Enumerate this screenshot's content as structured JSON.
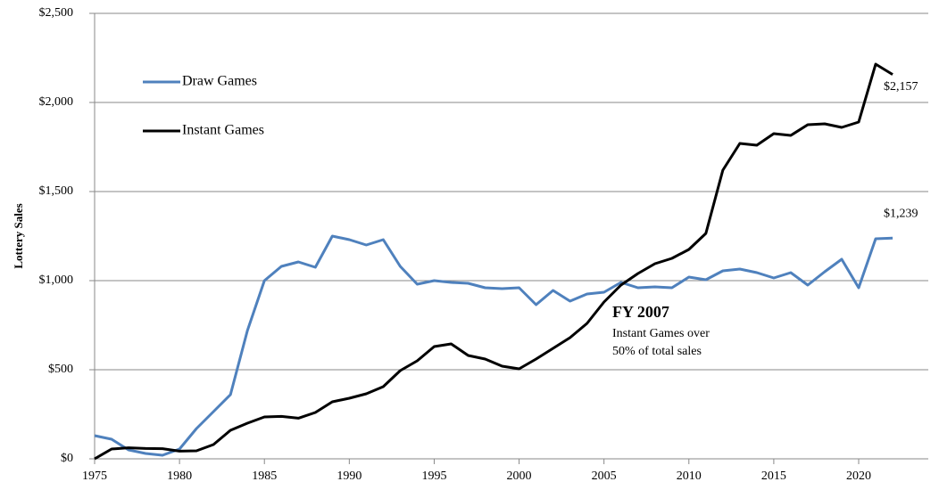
{
  "chart_data": {
    "type": "line",
    "y_label": "Lottery Sales",
    "x": [
      1975,
      1976,
      1977,
      1978,
      1979,
      1980,
      1981,
      1982,
      1983,
      1984,
      1985,
      1986,
      1987,
      1988,
      1989,
      1990,
      1991,
      1992,
      1993,
      1994,
      1995,
      1996,
      1997,
      1998,
      1999,
      2000,
      2001,
      2002,
      2003,
      2004,
      2005,
      2006,
      2007,
      2008,
      2009,
      2010,
      2011,
      2012,
      2013,
      2014,
      2015,
      2016,
      2017,
      2018,
      2019,
      2020,
      2021,
      2022
    ],
    "series": [
      {
        "name": "Draw Games",
        "color": "#4f81bd",
        "values": [
          130,
          110,
          50,
          30,
          20,
          55,
          170,
          265,
          360,
          720,
          1000,
          1080,
          1105,
          1075,
          1250,
          1230,
          1200,
          1230,
          1080,
          980,
          1000,
          990,
          985,
          960,
          955,
          960,
          865,
          945,
          885,
          925,
          935,
          990,
          960,
          965,
          960,
          1020,
          1005,
          1055,
          1065,
          1045,
          1015,
          1045,
          975,
          1050,
          1120,
          960,
          1235,
          1239
        ],
        "value_labels": [
          null,
          null,
          null,
          null,
          null,
          null,
          null,
          null,
          null,
          null,
          null,
          null,
          null,
          null,
          null,
          null,
          null,
          null,
          null,
          null,
          null,
          null,
          null,
          null,
          null,
          null,
          null,
          null,
          null,
          null,
          null,
          null,
          null,
          null,
          null,
          null,
          null,
          null,
          null,
          null,
          null,
          null,
          null,
          null,
          null,
          null,
          null,
          "$1,239"
        ]
      },
      {
        "name": "Instant Games",
        "color": "#000000",
        "values": [
          0,
          55,
          62,
          58,
          57,
          43,
          45,
          80,
          160,
          200,
          235,
          238,
          228,
          260,
          320,
          340,
          365,
          405,
          495,
          550,
          630,
          645,
          580,
          560,
          520,
          505,
          560,
          620,
          680,
          760,
          880,
          975,
          1040,
          1095,
          1125,
          1175,
          1265,
          1620,
          1770,
          1760,
          1825,
          1815,
          1875,
          1880,
          1860,
          1890,
          2215,
          2157
        ],
        "value_labels": [
          null,
          null,
          null,
          null,
          null,
          null,
          null,
          null,
          null,
          null,
          null,
          null,
          null,
          null,
          null,
          null,
          null,
          null,
          null,
          null,
          null,
          null,
          null,
          null,
          null,
          null,
          null,
          null,
          null,
          null,
          null,
          null,
          null,
          null,
          null,
          null,
          null,
          null,
          null,
          null,
          null,
          null,
          null,
          null,
          null,
          null,
          null,
          "$2,157"
        ]
      }
    ],
    "xlim": [
      1975,
      2024.1
    ],
    "xticks": [
      1975,
      1980,
      1985,
      1990,
      1995,
      2000,
      2005,
      2010,
      2015,
      2020
    ],
    "ylim": [
      0,
      2500
    ],
    "yticks": [
      {
        "value": 0,
        "label": "$0"
      },
      {
        "value": 500,
        "label": "$500"
      },
      {
        "value": 1000,
        "label": "$1,000"
      },
      {
        "value": 1500,
        "label": "$1,500"
      },
      {
        "value": 2000,
        "label": "$2,000"
      },
      {
        "value": 2500,
        "label": "$2,500"
      }
    ],
    "grid": true,
    "legend": "upper left",
    "annotation": {
      "title": "FY 2007",
      "lines": [
        "Instant Games over",
        "50% of total sales"
      ]
    }
  }
}
